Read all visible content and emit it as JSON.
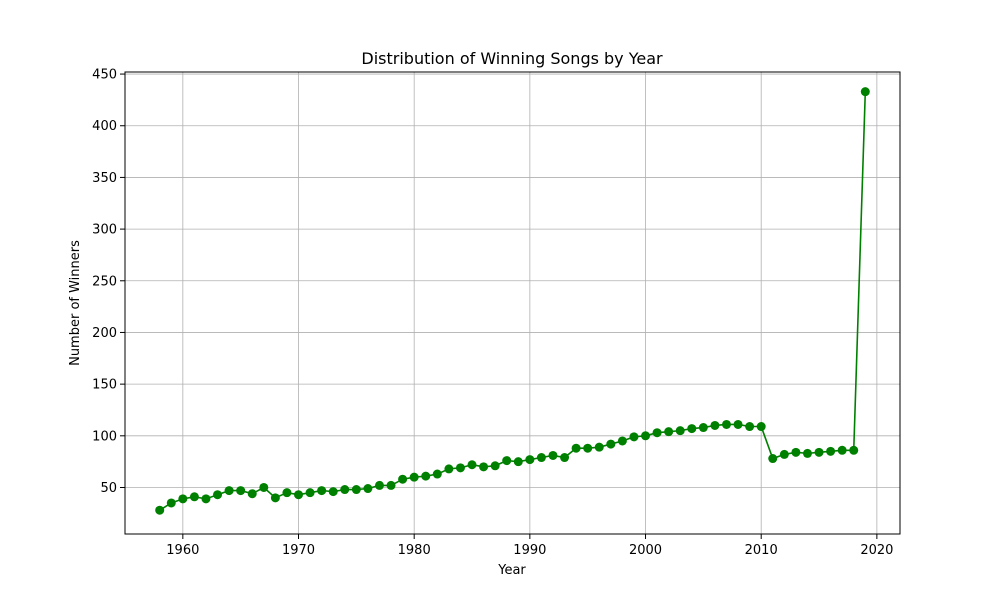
{
  "chart_data": {
    "type": "line",
    "title": "Distribution of Winning Songs by Year",
    "xlabel": "Year",
    "ylabel": "Number of Winners",
    "xlim": [
      1955,
      2022
    ],
    "ylim": [
      5,
      452
    ],
    "xticks": [
      1960,
      1970,
      1980,
      1990,
      2000,
      2010,
      2020
    ],
    "yticks": [
      50,
      100,
      150,
      200,
      250,
      300,
      350,
      400,
      450
    ],
    "grid": true,
    "marker": "circle",
    "color": "#008000",
    "series": [
      {
        "x": [
          1958,
          1959,
          1960,
          1961,
          1962,
          1963,
          1964,
          1965,
          1966,
          1967,
          1968,
          1969,
          1970,
          1971,
          1972,
          1973,
          1974,
          1975,
          1976,
          1977,
          1978,
          1979,
          1980,
          1981,
          1982,
          1983,
          1984,
          1985,
          1986,
          1987,
          1988,
          1989,
          1990,
          1991,
          1992,
          1993,
          1994,
          1995,
          1996,
          1997,
          1998,
          1999,
          2000,
          2001,
          2002,
          2003,
          2004,
          2005,
          2006,
          2007,
          2008,
          2009,
          2010,
          2011,
          2012,
          2013,
          2014,
          2015,
          2016,
          2017,
          2018,
          2019
        ],
        "values": [
          28,
          35,
          39,
          41,
          39,
          43,
          47,
          47,
          44,
          50,
          40,
          45,
          43,
          45,
          47,
          46,
          48,
          48,
          49,
          52,
          52,
          58,
          60,
          61,
          63,
          68,
          69,
          72,
          70,
          71,
          76,
          75,
          77,
          79,
          81,
          79,
          88,
          88,
          89,
          92,
          95,
          99,
          100,
          103,
          104,
          105,
          107,
          108,
          110,
          111,
          111,
          109,
          109,
          78,
          82,
          84,
          83,
          84,
          85,
          86,
          86,
          433
        ]
      }
    ]
  }
}
